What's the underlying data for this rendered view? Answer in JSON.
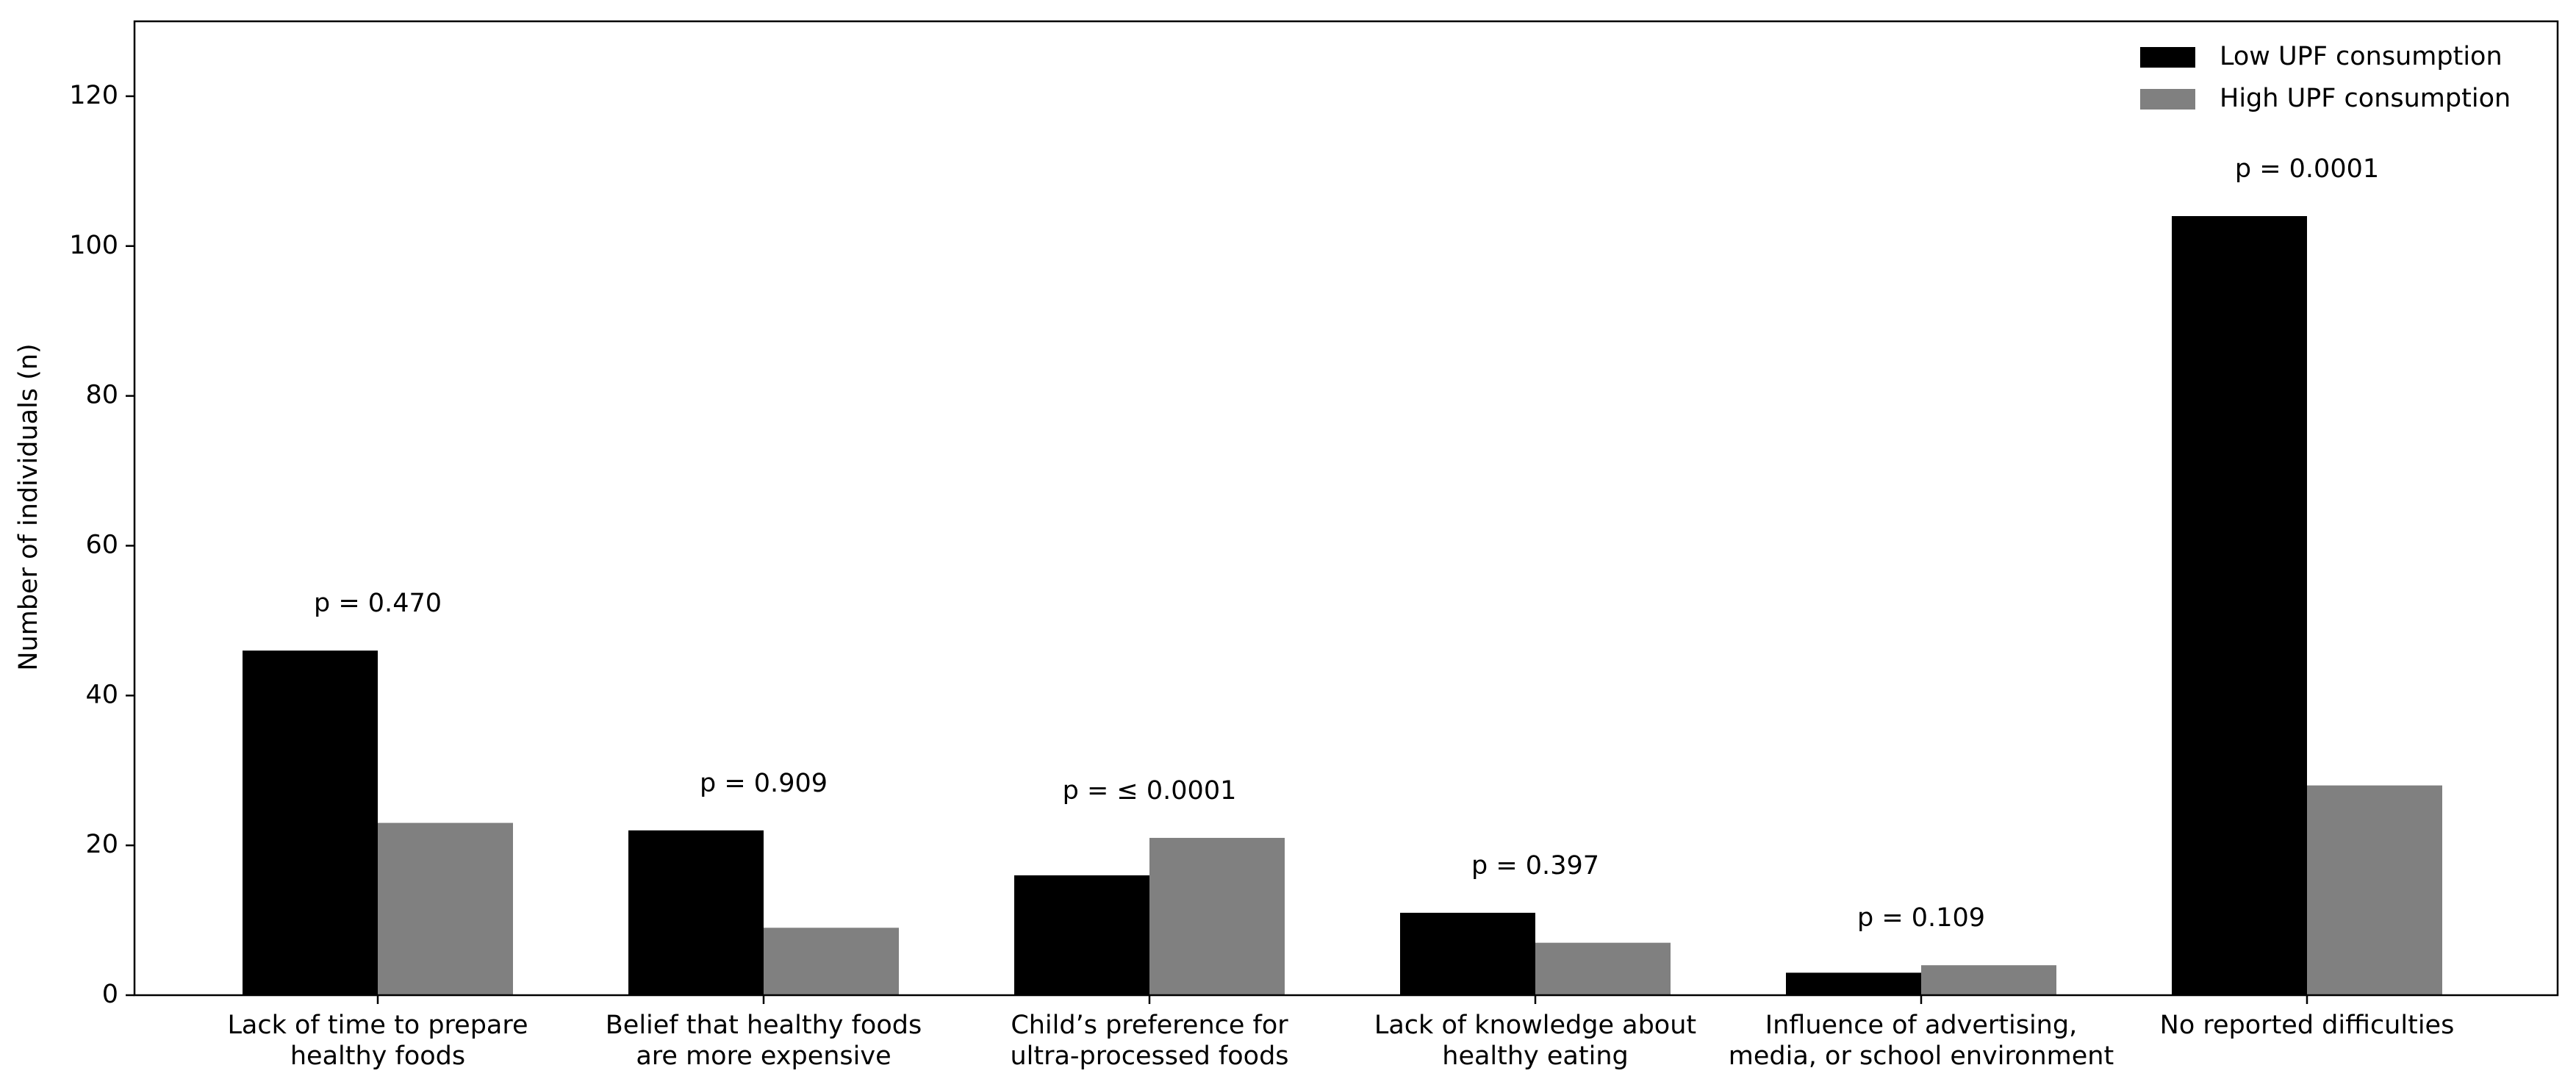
{
  "chart_data": {
    "type": "bar",
    "ylabel": "Number of individuals (n)",
    "categories": [
      "Lack of time to prepare\nhealthy foods",
      "Belief that healthy foods\nare more expensive",
      "Child’s preference for\nultra-processed foods",
      "Lack of knowledge about\nhealthy eating",
      "Influence of advertising,\nmedia, or school environment",
      "No reported difficulties"
    ],
    "series": [
      {
        "name": "Low UPF consumption",
        "color": "#000000",
        "values": [
          46,
          22,
          16,
          11,
          3,
          104
        ]
      },
      {
        "name": "High UPF consumption",
        "color": "#808080",
        "values": [
          23,
          9,
          21,
          7,
          4,
          28
        ]
      }
    ],
    "annotations": [
      "p = 0.470",
      "p = 0.909",
      "p = ≤ 0.0001",
      "p = 0.397",
      "p = 0.109",
      "p = 0.0001"
    ],
    "ylim": [
      0,
      130
    ],
    "yticks": [
      0,
      20,
      40,
      60,
      80,
      100,
      120
    ],
    "legend": "upper right"
  }
}
